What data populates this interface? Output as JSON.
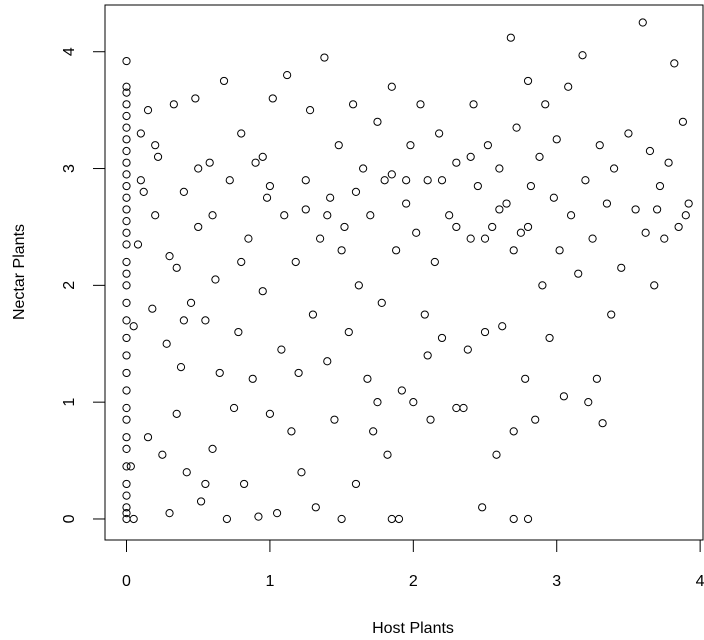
{
  "chart_data": {
    "type": "scatter",
    "x_label": "Host Plants",
    "y_label": "Nectar Plants",
    "color": "#000000",
    "xlim": [
      -0.15,
      4.02
    ],
    "ylim": [
      -0.18,
      4.4
    ],
    "xticks": [
      0,
      1,
      2,
      3,
      4
    ],
    "yticks": [
      0,
      1,
      2,
      3,
      4
    ],
    "x": [
      0,
      0,
      0,
      0,
      0,
      0,
      0,
      0,
      0,
      0,
      0,
      0,
      0,
      0,
      0,
      0,
      0,
      0,
      0,
      0,
      0,
      0,
      0,
      0,
      0,
      0,
      0,
      0,
      0,
      0,
      0,
      0,
      0,
      0,
      0,
      0.03,
      0.05,
      0.05,
      0.08,
      0.1,
      0.12,
      0.15,
      0.18,
      0.2,
      0.22,
      0.25,
      0.28,
      0.3,
      0.3,
      0.33,
      0.35,
      0.38,
      0.4,
      0.42,
      0.45,
      0.48,
      0.5,
      0.52,
      0.55,
      0.58,
      0.6,
      0.62,
      0.65,
      0.68,
      0.7,
      0.72,
      0.75,
      0.78,
      0.8,
      0.82,
      0.85,
      0.88,
      0.9,
      0.92,
      0.95,
      0.98,
      1.0,
      1.02,
      1.05,
      1.08,
      1.1,
      1.12,
      1.15,
      1.18,
      1.2,
      1.22,
      1.25,
      1.28,
      1.3,
      1.32,
      1.35,
      1.38,
      1.4,
      1.42,
      1.45,
      1.48,
      1.5,
      1.52,
      1.55,
      1.58,
      1.6,
      1.62,
      1.65,
      1.68,
      1.7,
      1.72,
      1.75,
      1.78,
      1.8,
      1.82,
      1.85,
      1.88,
      1.9,
      1.92,
      1.95,
      1.98,
      2.0,
      2.02,
      2.05,
      2.08,
      2.1,
      2.12,
      2.15,
      2.18,
      2.2,
      2.25,
      2.3,
      2.35,
      2.38,
      2.4,
      2.42,
      2.45,
      2.48,
      2.5,
      2.52,
      2.55,
      2.58,
      2.6,
      2.62,
      2.65,
      2.68,
      2.7,
      2.72,
      2.75,
      2.78,
      2.8,
      2.82,
      2.85,
      2.88,
      2.9,
      2.92,
      2.95,
      2.98,
      3.0,
      3.02,
      3.05,
      3.08,
      3.1,
      3.15,
      3.18,
      3.2,
      3.22,
      3.25,
      3.28,
      3.3,
      3.32,
      3.35,
      3.38,
      3.4,
      3.45,
      3.5,
      3.55,
      3.6,
      3.62,
      3.65,
      3.68,
      3.7,
      3.72,
      3.75,
      3.78,
      3.82,
      3.85,
      3.88,
      3.9,
      3.92,
      2.5,
      2.4,
      2.6,
      1.95,
      1.85,
      1.25,
      0.95,
      0.5,
      0.2,
      0.1,
      1.5,
      1.4,
      2.3,
      2.7,
      2.8,
      2.2,
      0.6,
      0.8,
      1.0,
      1.6,
      0.4,
      2.1,
      1.75,
      0.55,
      1.85,
      2.7,
      2.8,
      2.3,
      0.35,
      0.15
    ],
    "y": [
      0,
      0.05,
      0.1,
      0.2,
      0.3,
      0.45,
      0.6,
      0.7,
      0.85,
      0.95,
      1.1,
      1.25,
      1.4,
      1.55,
      1.7,
      1.85,
      2.0,
      2.1,
      2.2,
      2.35,
      2.45,
      2.55,
      2.65,
      2.75,
      2.85,
      2.95,
      3.05,
      3.15,
      3.25,
      3.35,
      3.45,
      3.55,
      3.65,
      3.7,
      3.92,
      0.45,
      0,
      1.65,
      2.35,
      3.3,
      2.8,
      0.7,
      1.8,
      2.6,
      3.1,
      0.55,
      1.5,
      2.25,
      0.05,
      3.55,
      0.9,
      1.3,
      2.8,
      0.4,
      1.85,
      3.6,
      2.5,
      0.15,
      1.7,
      3.05,
      0.6,
      2.05,
      1.25,
      3.75,
      0,
      2.9,
      0.95,
      1.6,
      3.3,
      0.3,
      2.4,
      1.2,
      3.05,
      0.02,
      1.95,
      2.75,
      0.9,
      3.6,
      0.05,
      1.45,
      2.6,
      3.8,
      0.75,
      2.2,
      1.25,
      0.4,
      2.9,
      3.5,
      1.75,
      0.1,
      2.4,
      3.95,
      1.35,
      2.75,
      0.85,
      3.2,
      0,
      2.5,
      1.6,
      3.55,
      0.3,
      2.0,
      3.0,
      1.2,
      2.6,
      0.75,
      3.4,
      1.85,
      2.9,
      0.55,
      3.7,
      2.3,
      0,
      1.1,
      2.7,
      3.2,
      1.0,
      2.45,
      3.55,
      1.75,
      2.9,
      0.85,
      2.2,
      3.3,
      1.55,
      2.6,
      3.05,
      0.95,
      1.45,
      2.4,
      3.55,
      2.85,
      0.1,
      1.6,
      3.2,
      2.5,
      0.55,
      3.0,
      1.65,
      2.7,
      4.12,
      0.75,
      3.35,
      2.45,
      1.2,
      3.75,
      2.85,
      0.85,
      3.1,
      2.0,
      3.55,
      1.55,
      2.75,
      3.25,
      2.3,
      1.05,
      3.7,
      2.6,
      2.1,
      3.97,
      2.9,
      1.0,
      2.4,
      1.2,
      3.2,
      0.82,
      2.7,
      1.75,
      3.0,
      2.15,
      3.3,
      2.65,
      4.25,
      2.45,
      3.15,
      2.0,
      2.65,
      2.85,
      2.4,
      3.05,
      3.9,
      2.5,
      3.4,
      2.6,
      2.7,
      2.4,
      3.1,
      2.65,
      2.9,
      2.95,
      2.65,
      3.1,
      3.0,
      3.2,
      2.9,
      2.3,
      2.6,
      2.5,
      2.3,
      2.5,
      2.9,
      2.6,
      2.2,
      2.85,
      2.8,
      1.7,
      1.4,
      1.0,
      0.3,
      0,
      0,
      0,
      0.95,
      2.15,
      3.5
    ]
  }
}
